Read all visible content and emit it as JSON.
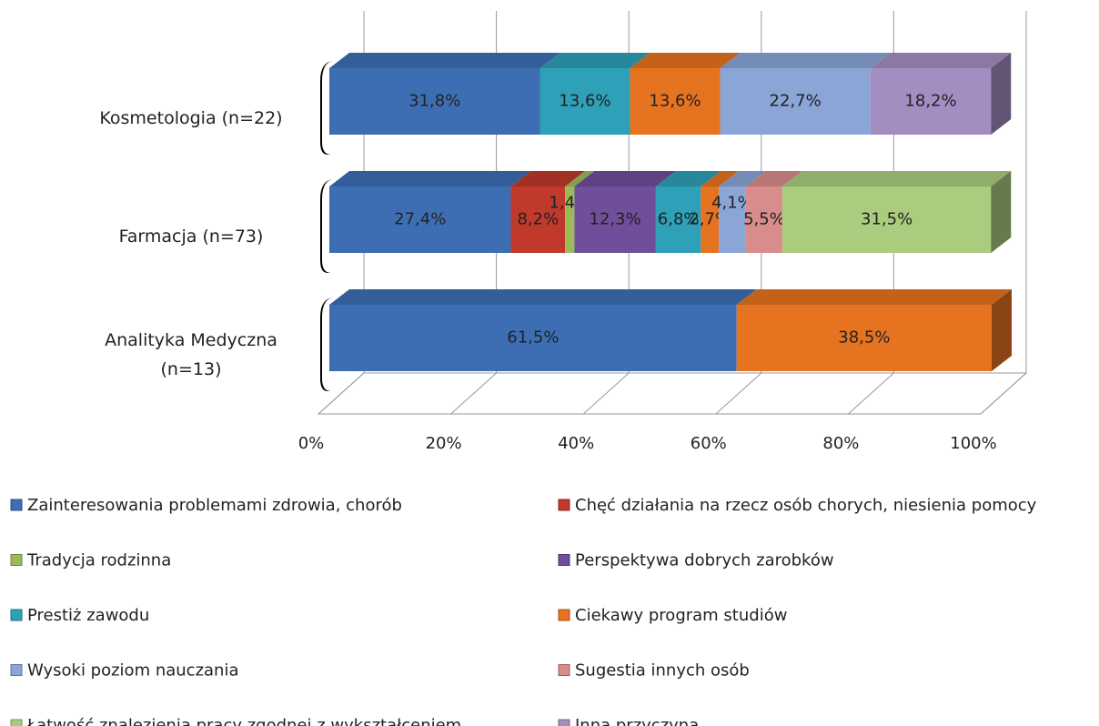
{
  "chart_data": {
    "type": "bar3d_stacked_horizontal",
    "categories": [
      "Kosmetologia (n=22)",
      "Farmacja (n=73)",
      "Analityka Medyczna (n=13)"
    ],
    "series": [
      {
        "name": "Zainteresowania problemami zdrowia, chorób",
        "color": "#3d6eb4",
        "values": [
          31.8,
          27.4,
          61.5
        ],
        "value_labels": [
          "31,8%",
          "27,4%",
          "61,5%"
        ]
      },
      {
        "name": "Chęć działania na rzecz osób chorych, niesienia pomocy",
        "color": "#c0392b",
        "values": [
          null,
          8.2,
          null
        ],
        "value_labels": [
          null,
          "8,2%",
          null
        ]
      },
      {
        "name": "Tradycja rodzinna",
        "color": "#9bbb59",
        "values": [
          null,
          1.4,
          null
        ],
        "value_labels": [
          null,
          "1,4%",
          null
        ]
      },
      {
        "name": "Perspektywa dobrych zarobków",
        "color": "#6f4e9a",
        "values": [
          null,
          12.3,
          null
        ],
        "value_labels": [
          null,
          "12,3%",
          null
        ]
      },
      {
        "name": "Prestiż zawodu",
        "color": "#2ea0b8",
        "values": [
          13.6,
          6.8,
          null
        ],
        "value_labels": [
          "13,6%",
          "6,8%",
          null
        ]
      },
      {
        "name": "Ciekawy program studiów",
        "color": "#e6731f",
        "values": [
          13.6,
          2.7,
          38.5
        ],
        "value_labels": [
          "13,6%",
          "2,7%",
          "38,5%"
        ]
      },
      {
        "name": "Wysoki poziom nauczania",
        "color": "#8aa5d6",
        "values": [
          22.7,
          4.1,
          null
        ],
        "value_labels": [
          "22,7%",
          "4,1%",
          null
        ]
      },
      {
        "name": "Sugestia innych osób",
        "color": "#d98c8c",
        "values": [
          null,
          5.5,
          null
        ],
        "value_labels": [
          null,
          "5,5%",
          null
        ]
      },
      {
        "name": "Łatwość znalezienia pracy zgodnej z wykształceniem",
        "color": "#aacc7f",
        "values": [
          null,
          31.5,
          null
        ],
        "value_labels": [
          null,
          "31,5%",
          null
        ]
      },
      {
        "name": "Inna przyczyna",
        "color": "#a48dc0",
        "values": [
          18.2,
          null,
          null
        ],
        "value_labels": [
          "18,2%",
          null,
          null
        ]
      }
    ],
    "xlim": [
      0,
      100
    ],
    "xticks": [
      {
        "value": 0,
        "label": "0%"
      },
      {
        "value": 20,
        "label": "20%"
      },
      {
        "value": 40,
        "label": "40%"
      },
      {
        "value": 60,
        "label": "60%"
      },
      {
        "value": 80,
        "label": "80%"
      },
      {
        "value": 100,
        "label": "100%"
      }
    ],
    "grid": true
  }
}
